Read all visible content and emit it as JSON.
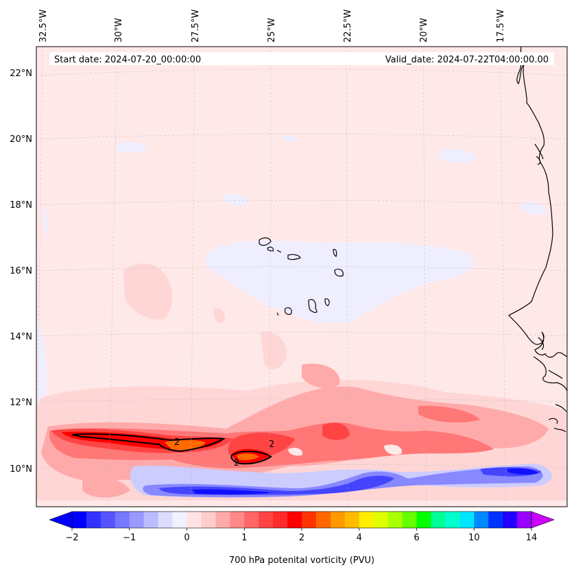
{
  "header": {
    "start_date": "Start date: 2024-07-20_00:00:00",
    "valid_date": "Valid_date: 2024-07-22T04:00:00.00"
  },
  "longitude_labels": [
    "32.5°W",
    "30°W",
    "27.5°W",
    "25°W",
    "22.5°W",
    "20°W",
    "17.5°W"
  ],
  "latitude_labels": [
    "22°N",
    "20°N",
    "18°N",
    "16°N",
    "14°N",
    "12°N",
    "10°N"
  ],
  "contour_label": "2",
  "colorbar": {
    "label": "700 hPa potenital vorticity (PVU)",
    "tick_labels": [
      "−2",
      "−1",
      "0",
      "1",
      "2",
      "4",
      "6",
      "10",
      "14"
    ],
    "tick_values": [
      -2,
      -1,
      0,
      1,
      2,
      4,
      6,
      10,
      14
    ],
    "colors": [
      "#0000ff",
      "#3333ff",
      "#5555ff",
      "#7777ff",
      "#9999ff",
      "#bbbbff",
      "#dcdcff",
      "#f1f1ff",
      "#ffe3e3",
      "#ffcccc",
      "#ffaaaa",
      "#ff8888",
      "#ff6666",
      "#ff4444",
      "#ff2a2a",
      "#ff0000",
      "#ff3300",
      "#ff6600",
      "#ff9900",
      "#ffbb00",
      "#ffee00",
      "#ddff00",
      "#aaff00",
      "#66ff00",
      "#00ff00",
      "#00ff99",
      "#00ffcc",
      "#00e5ff",
      "#0088ff",
      "#0033ff",
      "#2200ff",
      "#9900ff"
    ],
    "extend_low_color": "#0000ff",
    "extend_high_color": "#cc00ff"
  },
  "field_colors": {
    "background": "#ffe8e8",
    "light_blue": "#eeeeff",
    "pale_red": "#ffd6d6",
    "red1": "#ffaaaa",
    "red2": "#ff7777",
    "red3": "#ff4444",
    "red4": "#ff0000",
    "orange": "#ff6a00",
    "blue1": "#ccccff",
    "blue2": "#8888ff",
    "blue3": "#4444ff",
    "blue4": "#1010ff",
    "coast": "#000000"
  }
}
